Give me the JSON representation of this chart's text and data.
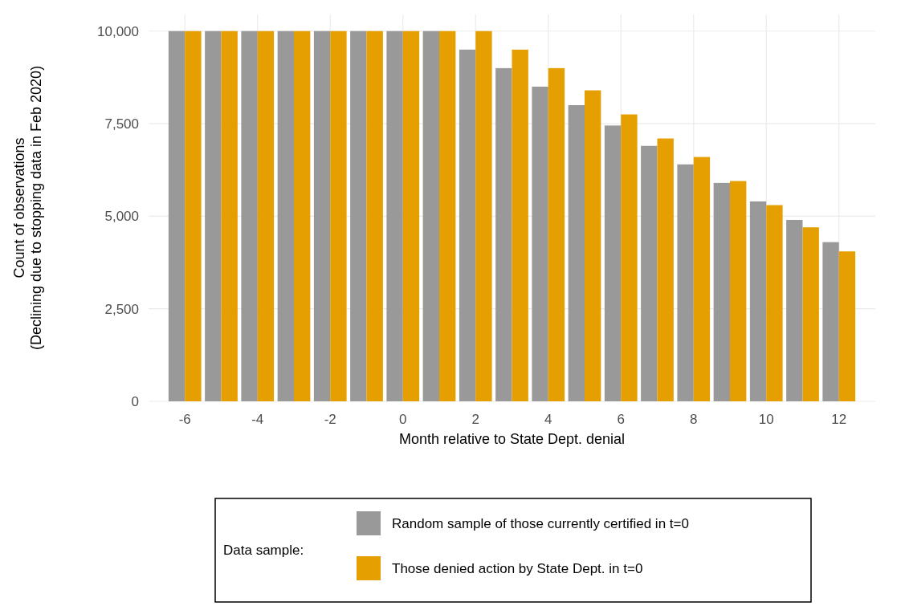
{
  "chart_data": {
    "type": "bar",
    "xlabel": "Month relative to State Dept. denial",
    "ylabel": "Count of observations\n(Declining due to stopping data in Feb 2020)",
    "legend_title": "Data sample:",
    "x": [
      -6,
      -5,
      -4,
      -3,
      -2,
      -1,
      0,
      1,
      2,
      3,
      4,
      5,
      6,
      7,
      8,
      9,
      10,
      11,
      12
    ],
    "series": [
      {
        "name": "Random sample of those currently certified in t=0",
        "color": "#999999",
        "values": [
          10000,
          10000,
          10000,
          10000,
          10000,
          10000,
          10000,
          10000,
          9500,
          9000,
          8500,
          8000,
          7450,
          6900,
          6400,
          5900,
          5400,
          4900,
          4300
        ]
      },
      {
        "name": "Those denied action by State Dept. in t=0",
        "color": "#e69f00",
        "values": [
          10000,
          10000,
          10000,
          10000,
          10000,
          10000,
          10000,
          10000,
          10000,
          9500,
          9000,
          8400,
          7750,
          7100,
          6600,
          5950,
          5300,
          4700,
          4050
        ]
      }
    ],
    "xlim": [
      -7,
      13
    ],
    "xticks": [
      -6,
      -4,
      -2,
      0,
      2,
      4,
      6,
      8,
      10,
      12
    ],
    "ylim": [
      0,
      10450
    ],
    "yticks": [
      {
        "value": 0,
        "label": "0"
      },
      {
        "value": 2500,
        "label": "2,500"
      },
      {
        "value": 5000,
        "label": "5,000"
      },
      {
        "value": 7500,
        "label": "7,500"
      },
      {
        "value": 10000,
        "label": "10,000"
      }
    ],
    "grid": true,
    "legend": "bottom"
  }
}
